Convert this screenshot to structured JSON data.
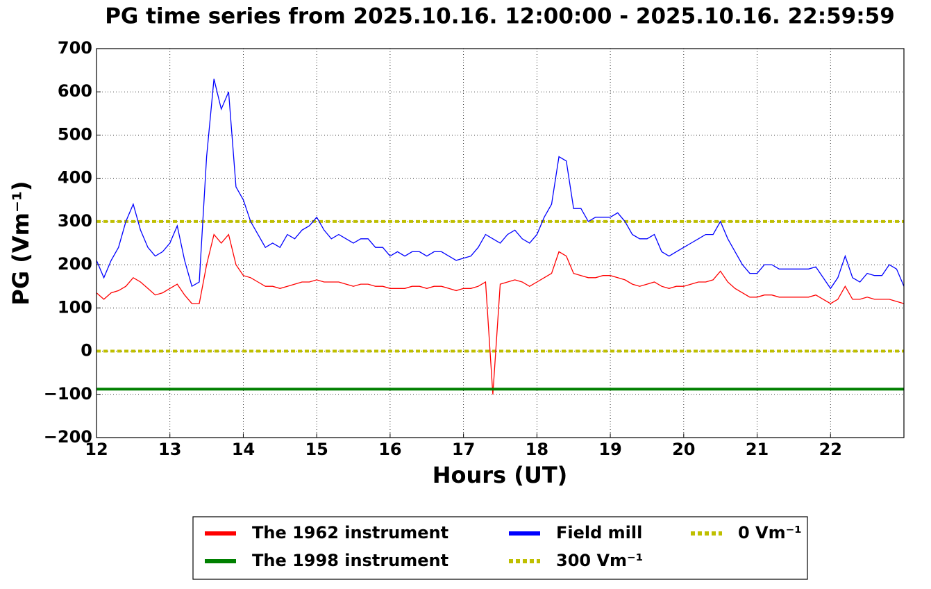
{
  "chart_data": {
    "type": "line",
    "title": "PG time series from 2025.10.16. 12:00:00 - 2025.10.16. 22:59:59",
    "xlabel": "Hours (UT)",
    "ylabel": "PG (Vm⁻¹)",
    "x": [
      12.0,
      12.1,
      12.2,
      12.3,
      12.4,
      12.5,
      12.6,
      12.7,
      12.8,
      12.9,
      13.0,
      13.1,
      13.2,
      13.3,
      13.4,
      13.5,
      13.6,
      13.7,
      13.8,
      13.9,
      14.0,
      14.1,
      14.2,
      14.3,
      14.4,
      14.5,
      14.6,
      14.7,
      14.8,
      14.9,
      15.0,
      15.1,
      15.2,
      15.3,
      15.4,
      15.5,
      15.6,
      15.7,
      15.8,
      15.9,
      16.0,
      16.1,
      16.2,
      16.3,
      16.4,
      16.5,
      16.6,
      16.7,
      16.8,
      16.9,
      17.0,
      17.1,
      17.2,
      17.3,
      17.4,
      17.5,
      17.6,
      17.7,
      17.8,
      17.9,
      18.0,
      18.1,
      18.2,
      18.3,
      18.4,
      18.5,
      18.6,
      18.7,
      18.8,
      18.9,
      19.0,
      19.1,
      19.2,
      19.3,
      19.4,
      19.5,
      19.6,
      19.7,
      19.8,
      19.9,
      20.0,
      20.1,
      20.2,
      20.3,
      20.4,
      20.5,
      20.6,
      20.7,
      20.8,
      20.9,
      21.0,
      21.1,
      21.2,
      21.3,
      21.4,
      21.5,
      21.6,
      21.7,
      21.8,
      21.9,
      22.0,
      22.1,
      22.2,
      22.3,
      22.4,
      22.5,
      22.6,
      22.7,
      22.8,
      22.9,
      23.0
    ],
    "series": [
      {
        "name": "The 1962 instrument",
        "color": "#ff0000",
        "values": [
          135,
          120,
          135,
          140,
          150,
          170,
          160,
          145,
          130,
          135,
          145,
          155,
          130,
          110,
          110,
          200,
          270,
          250,
          270,
          200,
          175,
          170,
          160,
          150,
          150,
          145,
          150,
          155,
          160,
          160,
          165,
          160,
          160,
          160,
          155,
          150,
          155,
          155,
          150,
          150,
          145,
          145,
          145,
          150,
          150,
          145,
          150,
          150,
          145,
          140,
          145,
          145,
          150,
          160,
          -100,
          155,
          160,
          165,
          160,
          150,
          160,
          170,
          180,
          230,
          220,
          180,
          175,
          170,
          170,
          175,
          175,
          170,
          165,
          155,
          150,
          155,
          160,
          150,
          145,
          150,
          150,
          155,
          160,
          160,
          165,
          185,
          160,
          145,
          135,
          125,
          125,
          130,
          130,
          125,
          125,
          125,
          125,
          125,
          130,
          120,
          110,
          120,
          150,
          120,
          120,
          125,
          120,
          120,
          120,
          115,
          110
        ]
      },
      {
        "name": "The 1998 instrument",
        "color": "#008000",
        "values": [
          -88,
          -88,
          -88,
          -88,
          -88,
          -88,
          -88,
          -88,
          -88,
          -88,
          -88,
          -88,
          -88,
          -88,
          -88,
          -88,
          -88,
          -88,
          -88,
          -88,
          -88,
          -88,
          -88,
          -88,
          -88,
          -88,
          -88,
          -88,
          -88,
          -88,
          -88,
          -88,
          -88,
          -88,
          -88,
          -88,
          -88,
          -88,
          -88,
          -88,
          -88,
          -88,
          -88,
          -88,
          -88,
          -88,
          -88,
          -88,
          -88,
          -88,
          -88,
          -88,
          -88,
          -88,
          -88,
          -88,
          -88,
          -88,
          -88,
          -88,
          -88,
          -88,
          -88,
          -88,
          -88,
          -88,
          -88,
          -88,
          -88,
          -88,
          -88,
          -88,
          -88,
          -88,
          -88,
          -88,
          -88,
          -88,
          -88,
          -88,
          -88,
          -88,
          -88,
          -88,
          -88,
          -88,
          -88,
          -88,
          -88,
          -88,
          -88,
          -88,
          -88,
          -88,
          -88,
          -88,
          -88,
          -88,
          -88,
          -88,
          -88,
          -88,
          -88,
          -88,
          -88,
          -88,
          -88,
          -88,
          -88,
          -88,
          -88
        ]
      },
      {
        "name": "Field mill",
        "color": "#0000ff",
        "values": [
          210,
          170,
          210,
          240,
          300,
          340,
          280,
          240,
          220,
          230,
          250,
          290,
          210,
          150,
          160,
          450,
          630,
          560,
          600,
          380,
          350,
          300,
          270,
          240,
          250,
          240,
          270,
          260,
          280,
          290,
          310,
          280,
          260,
          270,
          260,
          250,
          260,
          260,
          240,
          240,
          220,
          230,
          220,
          230,
          230,
          220,
          230,
          230,
          220,
          210,
          215,
          220,
          240,
          270,
          260,
          250,
          270,
          280,
          260,
          250,
          270,
          310,
          340,
          450,
          440,
          330,
          330,
          300,
          310,
          310,
          310,
          320,
          300,
          270,
          260,
          260,
          270,
          230,
          220,
          230,
          240,
          250,
          260,
          270,
          270,
          300,
          260,
          230,
          200,
          180,
          180,
          200,
          200,
          190,
          190,
          190,
          190,
          190,
          195,
          170,
          145,
          170,
          220,
          170,
          160,
          180,
          175,
          175,
          200,
          190,
          150
        ]
      }
    ],
    "hlines": [
      {
        "name": "300 Vm⁻¹",
        "value": 300,
        "color": "#bfbf00"
      },
      {
        "name": "0 Vm⁻¹",
        "value": 0,
        "color": "#bfbf00"
      }
    ],
    "xlim": [
      12,
      23
    ],
    "xticks": [
      12,
      13,
      14,
      15,
      16,
      17,
      18,
      19,
      20,
      21,
      22
    ],
    "ylim": [
      -200,
      700
    ],
    "yticks": [
      {
        "value": -200,
        "label": "−200"
      },
      {
        "value": -100,
        "label": "−100"
      },
      0,
      100,
      200,
      300,
      400,
      500,
      600,
      700
    ],
    "grid": true,
    "legend": "below"
  }
}
